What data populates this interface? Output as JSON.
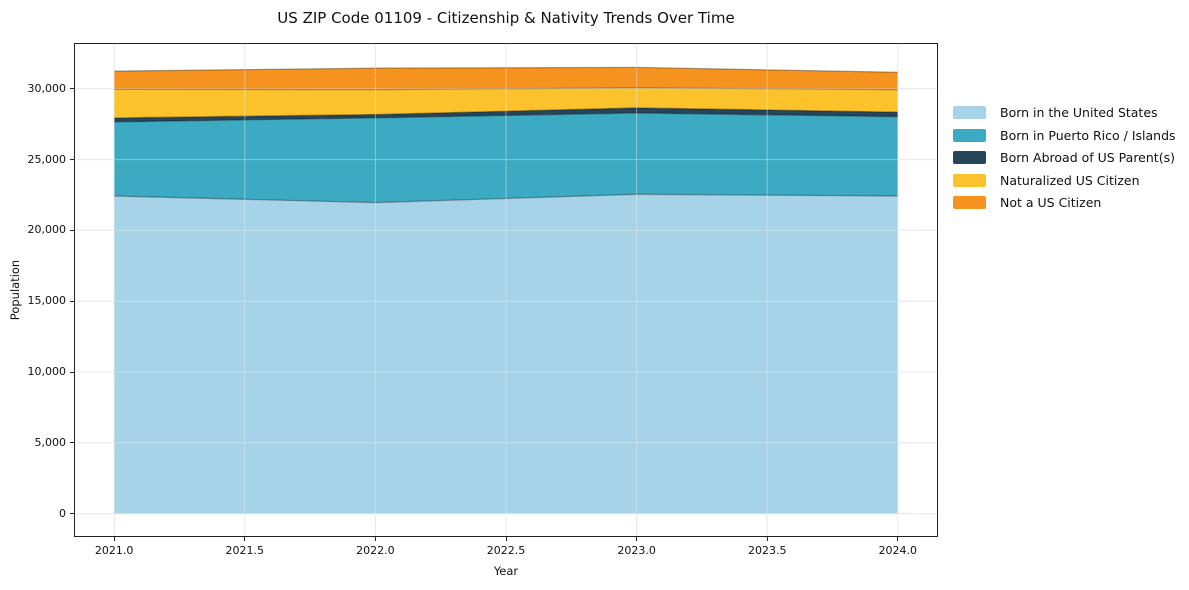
{
  "chart_data": {
    "type": "area",
    "stacked": true,
    "title": "US ZIP Code 01109 - Citizenship & Nativity Trends Over Time",
    "xlabel": "Year",
    "ylabel": "Population",
    "x": [
      2021,
      2022,
      2023,
      2024
    ],
    "series": [
      {
        "name": "Born in the United States",
        "color": "#A7D3E8",
        "values": [
          22430,
          21960,
          22550,
          22430
        ]
      },
      {
        "name": "Born in Puerto Rico / Islands",
        "color": "#3CAAC3",
        "values": [
          5230,
          5980,
          5740,
          5600
        ]
      },
      {
        "name": "Born Abroad of US Parent(s)",
        "color": "#25465A",
        "values": [
          280,
          240,
          360,
          320
        ]
      },
      {
        "name": "Naturalized US Citizen",
        "color": "#FCC22C",
        "values": [
          2020,
          1760,
          1400,
          1590
        ]
      },
      {
        "name": "Not a US Citizen",
        "color": "#F6921E",
        "values": [
          1290,
          1520,
          1460,
          1220
        ]
      }
    ],
    "x_ticks": [
      {
        "v": 2021.0,
        "label": "2021.0"
      },
      {
        "v": 2021.5,
        "label": "2021.5"
      },
      {
        "v": 2022.0,
        "label": "2022.0"
      },
      {
        "v": 2022.5,
        "label": "2022.5"
      },
      {
        "v": 2023.0,
        "label": "2023.0"
      },
      {
        "v": 2023.5,
        "label": "2023.5"
      },
      {
        "v": 2024.0,
        "label": "2024.0"
      }
    ],
    "y_ticks": [
      {
        "v": 0,
        "label": "0"
      },
      {
        "v": 5000,
        "label": "5,000"
      },
      {
        "v": 10000,
        "label": "10,000"
      },
      {
        "v": 15000,
        "label": "15,000"
      },
      {
        "v": 20000,
        "label": "20,000"
      },
      {
        "v": 25000,
        "label": "25,000"
      },
      {
        "v": 30000,
        "label": "30,000"
      }
    ],
    "xlim": [
      2020.85,
      2024.15
    ],
    "ylim": [
      -1580,
      33160
    ],
    "grid": true,
    "legend_position": "right"
  }
}
